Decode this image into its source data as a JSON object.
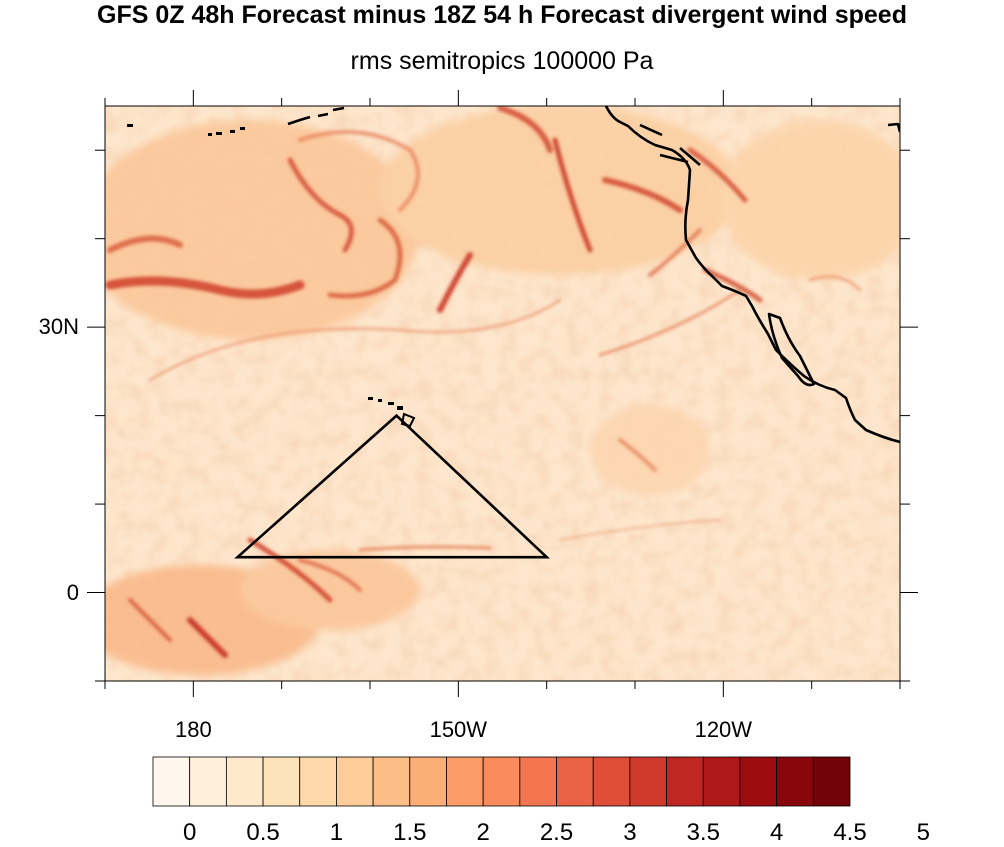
{
  "title": "GFS 0Z 48h Forecast minus 18Z 54 h Forecast divergent wind speed",
  "subtitle": "rms semitropics 100000 Pa",
  "y_axis": {
    "ticks": [
      {
        "label": "30N",
        "lat": 30
      },
      {
        "label": "0",
        "lat": 0
      }
    ]
  },
  "x_axis": {
    "ticks": [
      {
        "label": "180",
        "lon": -180
      },
      {
        "label": "150W",
        "lon": -150
      },
      {
        "label": "120W",
        "lon": -120
      }
    ]
  },
  "map_extent": {
    "lon": [
      -190,
      -100
    ],
    "lat": [
      -10,
      55
    ]
  },
  "colorbar": {
    "labels": [
      "0",
      "0.5",
      "1",
      "1.5",
      "2",
      "2.5",
      "3",
      "3.5",
      "4",
      "4.5",
      "5"
    ],
    "colors": [
      "#fff6ed",
      "#fff0dc",
      "#ffe9cb",
      "#fee2ba",
      "#fed8a8",
      "#fdcc98",
      "#fdbd86",
      "#fcae77",
      "#fc9d69",
      "#f98b5c",
      "#f37650",
      "#ea6244",
      "#de4e38",
      "#d03a2d",
      "#c02722",
      "#ae1818",
      "#9c0d10",
      "#89070c",
      "#720308"
    ]
  },
  "triangle": [
    {
      "lon": -175,
      "lat": 4
    },
    {
      "lon": -157,
      "lat": 20
    },
    {
      "lon": -140,
      "lat": 4
    }
  ]
}
